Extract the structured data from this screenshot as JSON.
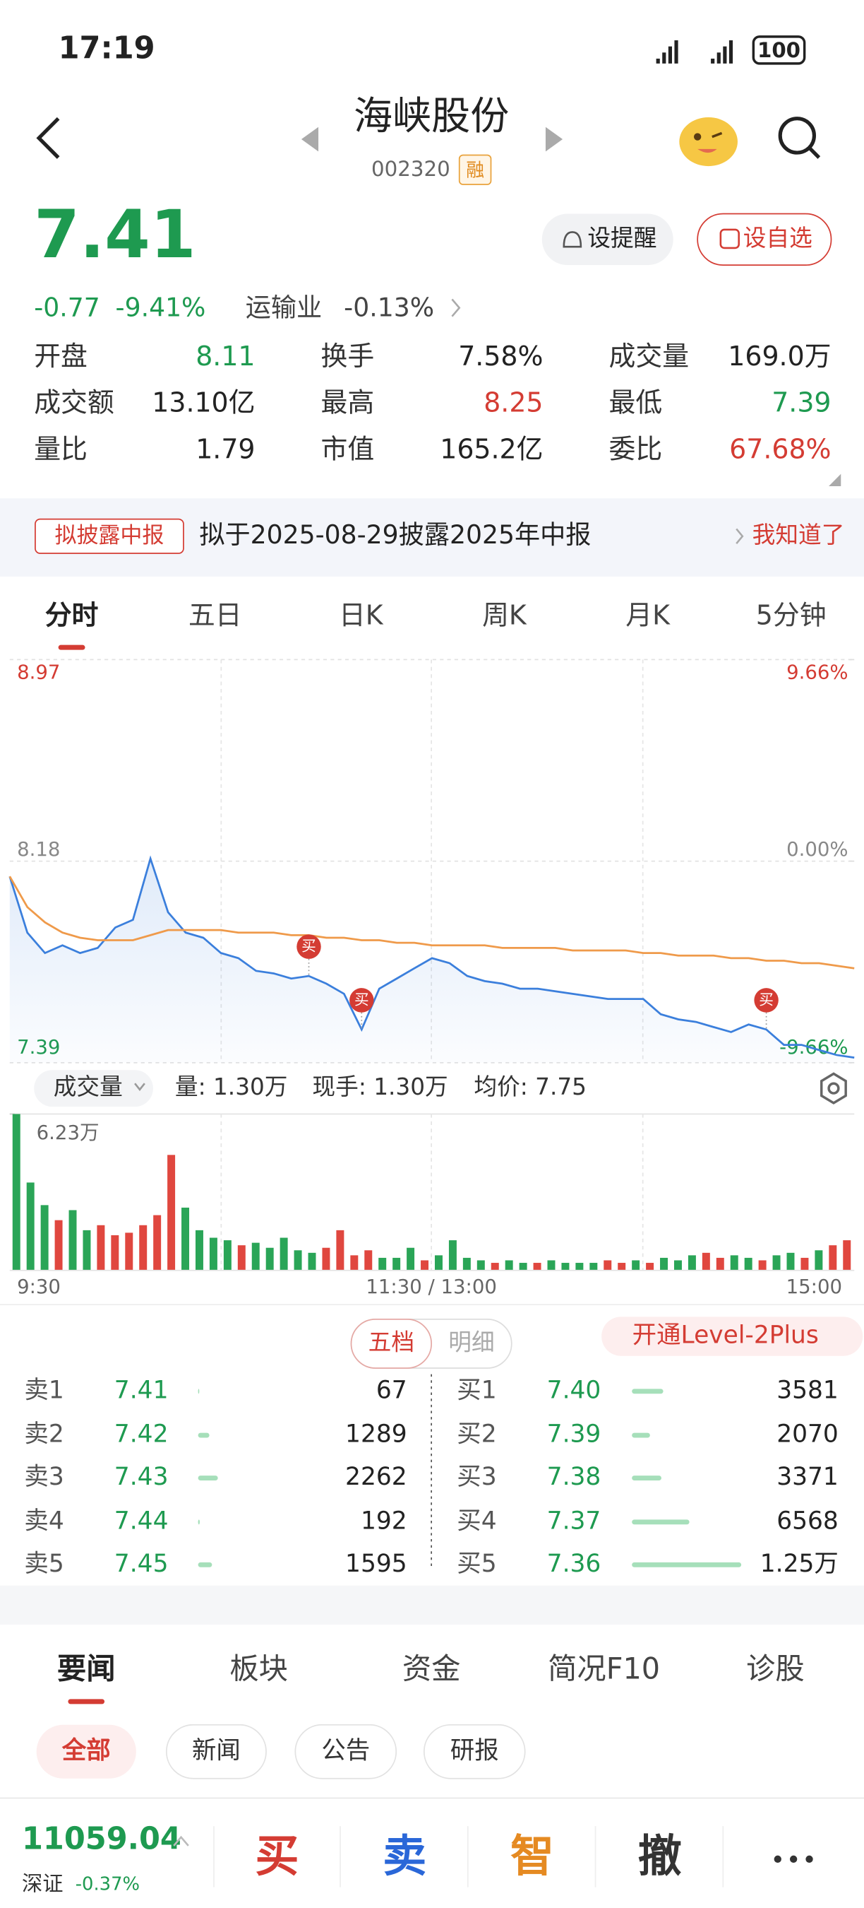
{
  "status_bar": {
    "time": "17:19",
    "battery": "100"
  },
  "header": {
    "title": "海峡股份",
    "code": "002320",
    "badge": "融"
  },
  "quote": {
    "price": "7.41",
    "change": "-0.77",
    "change_pct": "-9.41%",
    "industry": "运输业",
    "industry_pct": "-0.13%"
  },
  "buttons": [
    "设提醒",
    "设自选"
  ],
  "stats": [
    {
      "label": "开盘",
      "value": "8.11",
      "color": "green"
    },
    {
      "label": "换手",
      "value": "7.58%",
      "color": "dark"
    },
    {
      "label": "成交量",
      "value": "169.0万",
      "color": "dark"
    },
    {
      "label": "成交额",
      "value": "13.10亿",
      "color": "dark"
    },
    {
      "label": "最高",
      "value": "8.25",
      "color": "red"
    },
    {
      "label": "最低",
      "value": "7.39",
      "color": "green"
    },
    {
      "label": "量比",
      "value": "1.79",
      "color": "dark"
    },
    {
      "label": "市值",
      "value": "165.2亿",
      "color": "dark"
    },
    {
      "label": "委比",
      "value": "67.68%",
      "color": "red"
    }
  ],
  "notice": {
    "tag": "拟披露中报",
    "text": "拟于2025-08-29披露2025年中报",
    "action": "我知道了"
  },
  "chart_tabs": [
    "分时",
    "五日",
    "日K",
    "周K",
    "月K",
    "5分钟"
  ],
  "intraday": {
    "type": "line",
    "ylim": [
      7.39,
      8.97
    ],
    "yticks": [
      7.39,
      8.18,
      8.97
    ],
    "y2lim": [
      -9.66,
      9.66
    ],
    "y2ticks": [
      {
        "value": -9.66,
        "label": "-9.66%"
      },
      {
        "value": 0,
        "label": "0.00%"
      },
      {
        "value": 9.66,
        "label": "9.66%"
      }
    ],
    "series": [
      {
        "color": "#3b7fdc",
        "values": [
          8.12,
          7.9,
          7.82,
          7.85,
          7.82,
          7.84,
          7.92,
          7.95,
          8.19,
          7.98,
          7.9,
          7.88,
          7.82,
          7.8,
          7.75,
          7.74,
          7.72,
          7.73,
          7.7,
          7.66,
          7.52,
          7.68,
          7.72,
          7.76,
          7.8,
          7.78,
          7.73,
          7.71,
          7.7,
          7.68,
          7.68,
          7.67,
          7.66,
          7.65,
          7.64,
          7.64,
          7.64,
          7.58,
          7.56,
          7.55,
          7.53,
          7.51,
          7.54,
          7.52,
          7.46,
          7.46,
          7.44,
          7.42,
          7.41
        ]
      },
      {
        "color": "#ef9a4a",
        "values": [
          8.12,
          8.0,
          7.94,
          7.9,
          7.88,
          7.87,
          7.87,
          7.87,
          7.89,
          7.91,
          7.91,
          7.91,
          7.91,
          7.9,
          7.9,
          7.9,
          7.89,
          7.89,
          7.88,
          7.88,
          7.87,
          7.87,
          7.86,
          7.86,
          7.85,
          7.85,
          7.85,
          7.85,
          7.84,
          7.84,
          7.84,
          7.84,
          7.83,
          7.83,
          7.83,
          7.83,
          7.82,
          7.82,
          7.81,
          7.81,
          7.81,
          7.8,
          7.8,
          7.79,
          7.79,
          7.78,
          7.78,
          7.77,
          7.76
        ]
      }
    ],
    "annotations": [
      {
        "text": "买",
        "index": 17
      },
      {
        "text": "买",
        "index": 20
      },
      {
        "text": "买",
        "index": 43
      }
    ],
    "grid": true
  },
  "volume_bar": {
    "selector": "成交量",
    "items": [
      "量: 1.30万",
      "现手: 1.30万",
      "均价: 7.75"
    ]
  },
  "volume": {
    "type": "bar",
    "ylim": [
      0,
      6.23
    ],
    "yticks": [
      {
        "value": 6.23,
        "label": "6.23万"
      }
    ],
    "values": [
      6.23,
      3.5,
      2.6,
      2.0,
      2.4,
      1.6,
      1.8,
      1.4,
      1.5,
      1.8,
      2.2,
      4.6,
      2.5,
      1.6,
      1.3,
      1.2,
      1.0,
      1.1,
      0.9,
      1.3,
      0.8,
      0.7,
      0.9,
      1.6,
      0.6,
      0.8,
      0.5,
      0.5,
      0.9,
      0.4,
      0.6,
      1.2,
      0.5,
      0.4,
      0.3,
      0.4,
      0.3,
      0.3,
      0.4,
      0.3,
      0.3,
      0.3,
      0.4,
      0.3,
      0.4,
      0.3,
      0.5,
      0.4,
      0.6,
      0.7,
      0.5,
      0.6,
      0.5,
      0.4,
      0.6,
      0.7,
      0.5,
      0.8,
      1.0,
      1.2
    ],
    "up": [
      0,
      0,
      0,
      1,
      0,
      0,
      1,
      1,
      1,
      1,
      1,
      1,
      0,
      0,
      0,
      0,
      1,
      0,
      0,
      0,
      0,
      0,
      1,
      1,
      1,
      1,
      0,
      0,
      0,
      1,
      0,
      0,
      0,
      0,
      1,
      0,
      0,
      1,
      0,
      0,
      0,
      0,
      1,
      1,
      0,
      1,
      0,
      0,
      0,
      1,
      1,
      0,
      0,
      1,
      0,
      0,
      1,
      0,
      1,
      1
    ],
    "up_color": "#e0473f",
    "down_color": "#2aa557",
    "x_labels": [
      "9:30",
      "11:30 / 13:00",
      "15:00"
    ]
  },
  "order_book": {
    "tabs": [
      "五档",
      "明细"
    ],
    "level2": "开通Level-2Plus",
    "sell": [
      {
        "label": "卖1",
        "price": "7.41",
        "volume": 67
      },
      {
        "label": "卖2",
        "price": "7.42",
        "volume": 1289
      },
      {
        "label": "卖3",
        "price": "7.43",
        "volume": 2262
      },
      {
        "label": "卖4",
        "price": "7.44",
        "volume": 192
      },
      {
        "label": "卖5",
        "price": "7.45",
        "volume": 1595
      }
    ],
    "buy": [
      {
        "label": "买1",
        "price": "7.40",
        "volume": 3581
      },
      {
        "label": "买2",
        "price": "7.39",
        "volume": 2070
      },
      {
        "label": "买3",
        "price": "7.38",
        "volume": 3371
      },
      {
        "label": "买4",
        "price": "7.37",
        "volume": 6568
      },
      {
        "label": "买5",
        "price": "7.36",
        "volume": 12500,
        "volume_label": "1.25万"
      }
    ]
  },
  "news": {
    "tabs": [
      "要闻",
      "板块",
      "资金",
      "简况F10",
      "诊股"
    ],
    "filters": [
      "全部",
      "新闻",
      "公告",
      "研报"
    ]
  },
  "footer": {
    "index_value": "11059.04",
    "index_name": "深证",
    "index_pct": "-0.37%",
    "actions": [
      "买",
      "卖",
      "智",
      "撤"
    ]
  }
}
